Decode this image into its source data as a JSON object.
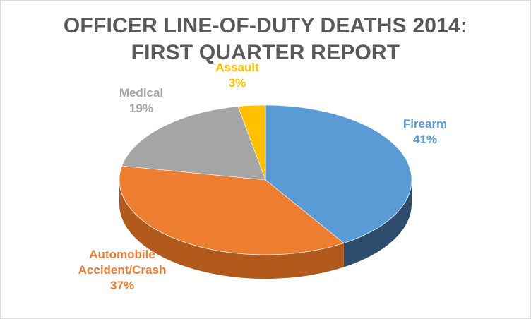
{
  "chart_data": {
    "type": "pie",
    "title": [
      "OFFICER LINE-OF-DUTY DEATHS 2014:",
      "FIRST QUARTER REPORT"
    ],
    "slices": [
      {
        "name": "Firearm",
        "value": 41,
        "label": "41%",
        "color": "#5b9bd5",
        "side": "#2e4d6e"
      },
      {
        "name": "Automobile Accident/Crash",
        "name_lines": [
          "Automobile",
          "Accident/Crash"
        ],
        "value": 37,
        "label": "37%",
        "color": "#ed7d31",
        "side": "#b25a1c"
      },
      {
        "name": "Medical",
        "value": 19,
        "label": "19%",
        "color": "#a5a5a5",
        "side": "#7a7a7a"
      },
      {
        "name": "Assault",
        "value": 3,
        "label": "3%",
        "color": "#ffc000",
        "side": "#c79400"
      }
    ],
    "legend": "none",
    "data_labels": "outside"
  }
}
